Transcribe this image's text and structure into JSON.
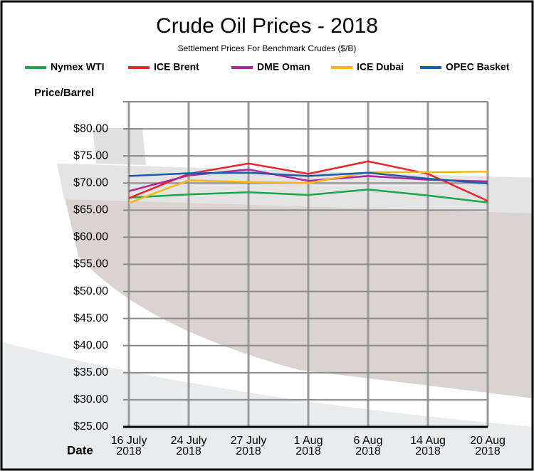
{
  "chart_data": {
    "type": "line",
    "title": "Crude Oil Prices - 2018",
    "subtitle": "Settlement Prices For Benchmark Crudes ($/B)",
    "y_label": "Price/Barrel",
    "x_label": "Date",
    "categories": [
      "16 July 2018",
      "24 July 2018",
      "27 July 2018",
      "1 Aug 2018",
      "6 Aug 2018",
      "14 Aug 2018",
      "20 Aug 2018"
    ],
    "series": [
      {
        "name": "Nymex WTI",
        "color": "#1aa84a",
        "values": [
          67.3,
          67.9,
          68.3,
          67.8,
          68.8,
          67.7,
          66.4
        ]
      },
      {
        "name": "ICE Brent",
        "color": "#e8262b",
        "values": [
          67.2,
          71.7,
          73.6,
          71.7,
          74.0,
          71.7,
          66.7
        ]
      },
      {
        "name": "DME Oman",
        "color": "#b0259a",
        "values": [
          68.5,
          71.4,
          72.5,
          70.4,
          71.3,
          70.6,
          70.3
        ]
      },
      {
        "name": "ICE Dubai",
        "color": "#fbb614",
        "values": [
          66.3,
          70.5,
          70.2,
          70.0,
          72.0,
          72.0,
          72.1
        ]
      },
      {
        "name": "OPEC Basket",
        "color": "#1a5ca8",
        "values": [
          71.3,
          71.8,
          71.9,
          71.3,
          71.9,
          70.8,
          69.9
        ]
      }
    ],
    "ylim": [
      25,
      85
    ],
    "yticks": [
      {
        "value": 25,
        "label": "$25.00"
      },
      {
        "value": 30,
        "label": "$30.00"
      },
      {
        "value": 35,
        "label": "$35.00"
      },
      {
        "value": 40,
        "label": "$40.00"
      },
      {
        "value": 45,
        "label": "$45.00"
      },
      {
        "value": 50,
        "label": "$50.00"
      },
      {
        "value": 55,
        "label": "$55.00"
      },
      {
        "value": 60,
        "label": "$60.00"
      },
      {
        "value": 65,
        "label": "$65.00"
      },
      {
        "value": 70,
        "label": "$70.00"
      },
      {
        "value": 75,
        "label": "$75.00"
      },
      {
        "value": 80,
        "label": "$80.00"
      }
    ],
    "grid": true
  }
}
